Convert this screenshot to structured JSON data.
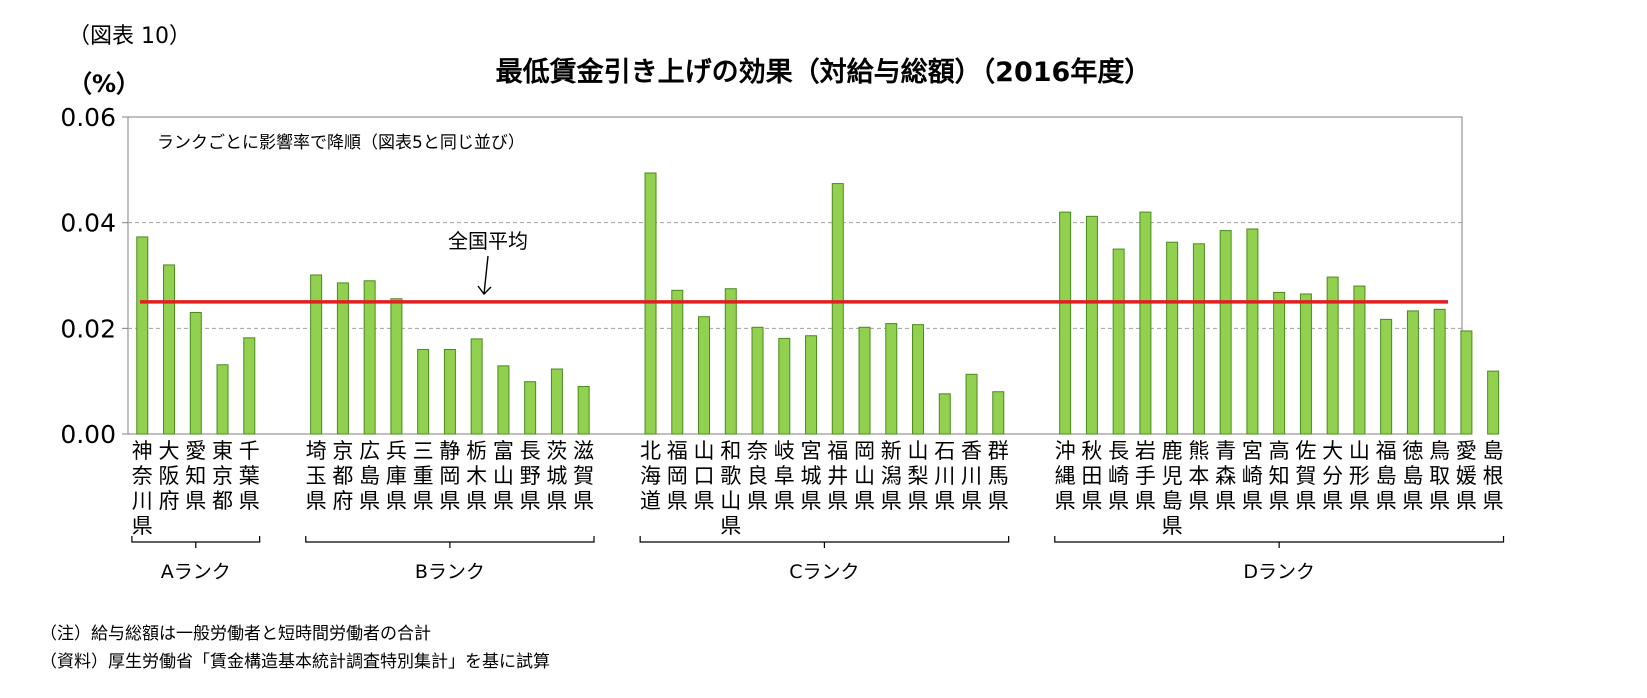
{
  "figure_label": "（図表 10）",
  "y_unit": "（%）",
  "title": "最低賃金引き上げの効果（対給与総額）（2016年度）",
  "notes": [
    "（注）給与総額は一般労働者と短時間労働者の合計",
    "（資料）厚生労働省「賃金構造基本統計調査特別集計」を基に試算"
  ],
  "colors": {
    "bar": "#92d050",
    "bar_stroke": "#4a8a1e",
    "avg_line": "#e02020",
    "grid": "#a0a0a0",
    "axis": "#808080"
  },
  "chart_data": {
    "type": "bar",
    "title": "最低賃金引き上げの効果（対給与総額）（2016年度）",
    "ylabel": "（%）",
    "ylim": [
      0,
      0.06
    ],
    "yticks": [
      "0.00",
      "0.02",
      "0.04",
      "0.06"
    ],
    "grid": true,
    "annotation": "ランクごとに影響率で降順（図表5と同じ並び）",
    "average": {
      "label": "全国平均",
      "value": 0.025
    },
    "groups": [
      {
        "name": "Aランク",
        "categories": [
          "神奈川県",
          "大阪府",
          "愛知県",
          "東京都",
          "千葉県"
        ],
        "values": [
          0.0373,
          0.032,
          0.023,
          0.0131,
          0.0182
        ]
      },
      {
        "name": "Bランク",
        "categories": [
          "埼玉県",
          "京都府",
          "広島県",
          "兵庫県",
          "三重県",
          "静岡県",
          "栃木県",
          "富山県",
          "長野県",
          "茨城県",
          "滋賀県"
        ],
        "values": [
          0.0301,
          0.0286,
          0.029,
          0.0256,
          0.016,
          0.016,
          0.018,
          0.0129,
          0.0099,
          0.0123,
          0.009
        ]
      },
      {
        "name": "Cランク",
        "categories": [
          "北海道",
          "福岡県",
          "山口県",
          "和歌山県",
          "奈良県",
          "岐阜県",
          "宮城県",
          "福井県",
          "岡山県",
          "新潟県",
          "山梨県",
          "石川県",
          "香川県",
          "群馬県"
        ],
        "values": [
          0.0494,
          0.0272,
          0.0222,
          0.0275,
          0.0202,
          0.0181,
          0.0186,
          0.0474,
          0.0202,
          0.0209,
          0.0207,
          0.0076,
          0.0113,
          0.008
        ]
      },
      {
        "name": "Dランク",
        "categories": [
          "沖縄県",
          "秋田県",
          "長崎県",
          "岩手県",
          "鹿児島県",
          "熊本県",
          "青森県",
          "宮崎県",
          "高知県",
          "佐賀県",
          "大分県",
          "山形県",
          "福島県",
          "徳島県",
          "鳥取県",
          "愛媛県",
          "島根県"
        ],
        "values": [
          0.042,
          0.0412,
          0.035,
          0.042,
          0.0363,
          0.036,
          0.0385,
          0.0388,
          0.0268,
          0.0265,
          0.0297,
          0.028,
          0.0217,
          0.0233,
          0.0236,
          0.0195,
          0.0119
        ]
      }
    ]
  }
}
